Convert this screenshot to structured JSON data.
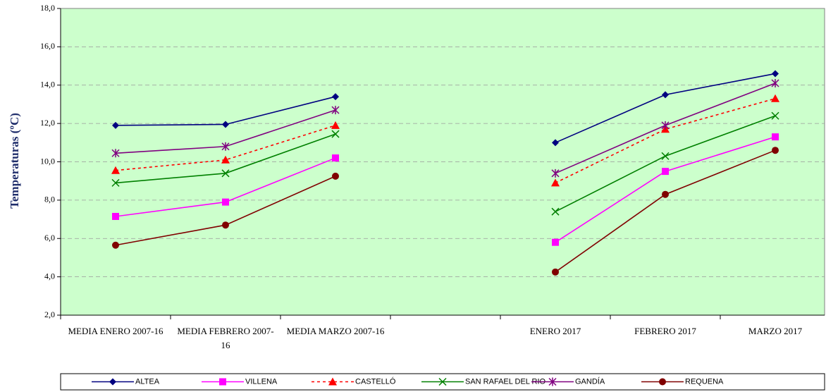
{
  "chart_data": {
    "type": "line",
    "y_label": "Temperaturas  (ºC)",
    "categories": [
      "MEDIA ENERO 2007-16",
      "MEDIA FEBRERO 2007-16",
      "MEDIA MARZO 2007-16",
      null,
      "ENERO 2017",
      "FEBRERO 2017",
      "MARZO 2017"
    ],
    "series": [
      {
        "name": "ALTEA",
        "color": "#000080",
        "marker": "diamond",
        "dashed": false,
        "values": [
          11.9,
          11.95,
          13.4,
          null,
          11.0,
          13.5,
          14.6
        ]
      },
      {
        "name": "VILLENA",
        "color": "#ff00ff",
        "marker": "square",
        "dashed": false,
        "values": [
          7.15,
          7.9,
          10.2,
          null,
          5.8,
          9.5,
          11.3
        ]
      },
      {
        "name": "CASTELLÓ",
        "color": "#ff0000",
        "marker": "triangle",
        "dashed": true,
        "values": [
          9.55,
          10.1,
          11.9,
          null,
          8.9,
          11.7,
          13.3
        ]
      },
      {
        "name": "SAN RAFAEL DEL RIO",
        "color": "#008000",
        "marker": "x",
        "dashed": false,
        "values": [
          8.9,
          9.4,
          11.45,
          null,
          7.4,
          10.3,
          12.4
        ]
      },
      {
        "name": "GANDÍA",
        "color": "#800080",
        "marker": "star",
        "dashed": false,
        "values": [
          10.45,
          10.8,
          12.7,
          null,
          9.4,
          11.9,
          14.1
        ]
      },
      {
        "name": "REQUENA",
        "color": "#800000",
        "marker": "circle",
        "dashed": false,
        "values": [
          5.65,
          6.7,
          9.25,
          null,
          4.25,
          8.3,
          10.6
        ]
      }
    ],
    "ylim": [
      2,
      18
    ],
    "yticks": [
      {
        "value": 2,
        "label": "2,0"
      },
      {
        "value": 4,
        "label": "4,0"
      },
      {
        "value": 6,
        "label": "6,0"
      },
      {
        "value": 8,
        "label": "8,0"
      },
      {
        "value": 10,
        "label": "10,0"
      },
      {
        "value": 12,
        "label": "12,0"
      },
      {
        "value": 14,
        "label": "14,0"
      },
      {
        "value": 16,
        "label": "16,0"
      },
      {
        "value": 18,
        "label": "18,0"
      }
    ],
    "grid": true,
    "plot_color": "#ccffcc",
    "legend": "bottom"
  }
}
